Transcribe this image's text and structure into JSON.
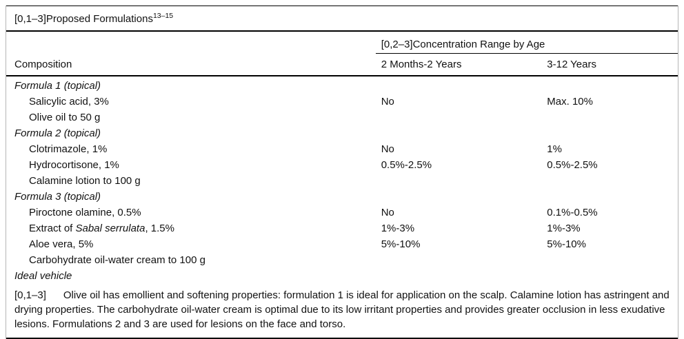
{
  "table": {
    "title_text": "[0,1–3]Proposed Formulations",
    "title_superscript": "13–15",
    "span_header": "[0,2–3]Concentration Range by Age",
    "columns": [
      "Composition",
      "2 Months-2 Years",
      "3-12 Years"
    ],
    "rows": [
      {
        "composition": "Formula 1 (topical)",
        "type": "formula",
        "age_2m_2y": "",
        "age_3_12y": ""
      },
      {
        "composition": "Salicylic acid, 3%",
        "type": "ingredient",
        "age_2m_2y": "No",
        "age_3_12y": "Max. 10%"
      },
      {
        "composition": "Olive oil to 50 g",
        "type": "ingredient",
        "age_2m_2y": "",
        "age_3_12y": ""
      },
      {
        "composition": "Formula 2 (topical)",
        "type": "formula",
        "age_2m_2y": "",
        "age_3_12y": ""
      },
      {
        "composition": "Clotrimazole, 1%",
        "type": "ingredient",
        "age_2m_2y": "No",
        "age_3_12y": "1%"
      },
      {
        "composition": "Hydrocortisone, 1%",
        "type": "ingredient",
        "age_2m_2y": "0.5%-2.5%",
        "age_3_12y": "0.5%-2.5%"
      },
      {
        "composition": "Calamine lotion to 100 g",
        "type": "ingredient",
        "age_2m_2y": "",
        "age_3_12y": ""
      },
      {
        "composition": "Formula 3 (topical)",
        "type": "formula",
        "age_2m_2y": "",
        "age_3_12y": ""
      },
      {
        "composition": "Piroctone olamine, 0.5%",
        "type": "ingredient",
        "age_2m_2y": "No",
        "age_3_12y": "0.1%-0.5%"
      },
      {
        "composition": "Extract of Sabal serrulata, 1.5%",
        "composition_parts": {
          "pre": "Extract of ",
          "italic": "Sabal serrulata",
          "post": ", 1.5%"
        },
        "type": "ingredient",
        "age_2m_2y": "1%-3%",
        "age_3_12y": "1%-3%"
      },
      {
        "composition": "Aloe vera, 5%",
        "type": "ingredient",
        "age_2m_2y": "5%-10%",
        "age_3_12y": "5%-10%"
      },
      {
        "composition": "Carbohydrate oil-water cream to 100 g",
        "type": "ingredient",
        "age_2m_2y": "",
        "age_3_12y": ""
      },
      {
        "composition": "Ideal vehicle",
        "type": "formula",
        "age_2m_2y": "",
        "age_3_12y": ""
      }
    ],
    "footnote": {
      "label": "[0,1–3]",
      "text": "Olive oil has emollient and softening properties: formulation 1 is ideal for application on the scalp. Calamine lotion has astringent and drying properties. The carbohydrate oil-water cream is optimal due to its low irritant properties and provides greater occlusion in less exudative lesions. Formulations 2 and 3 are used for lesions on the face and torso."
    },
    "colors": {
      "rule": "#000000",
      "frame_border": "#b5b5b5",
      "text": "#111111"
    }
  }
}
